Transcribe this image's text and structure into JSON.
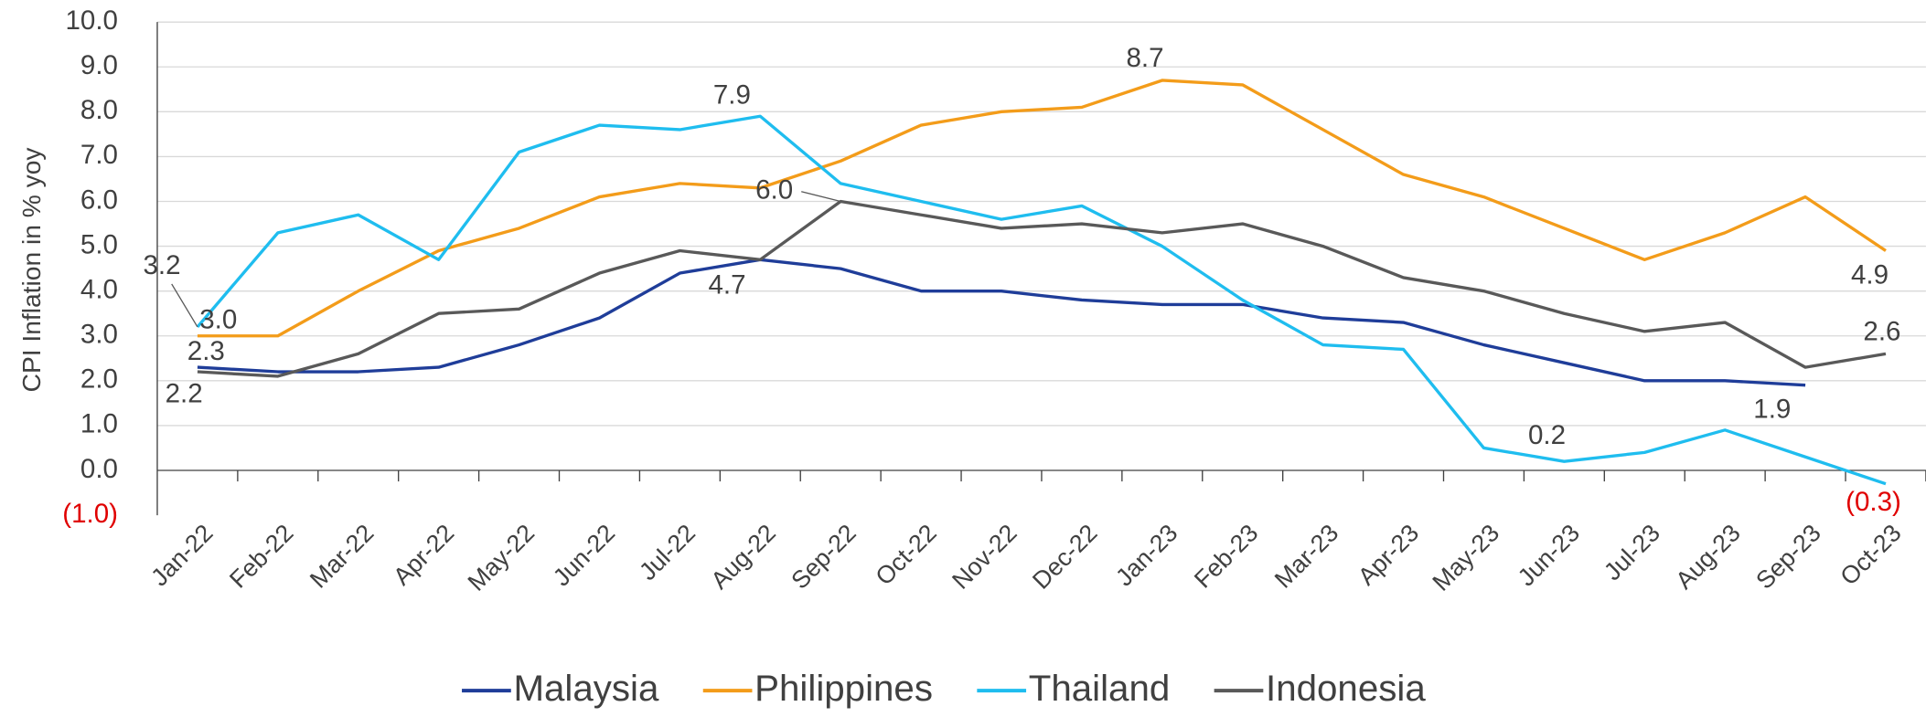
{
  "chart_data": {
    "type": "line",
    "y_label": "CPI Inflation in % yoy",
    "categories": [
      "Jan-22",
      "Feb-22",
      "Mar-22",
      "Apr-22",
      "May-22",
      "Jun-22",
      "Jul-22",
      "Aug-22",
      "Sep-22",
      "Oct-22",
      "Nov-22",
      "Dec-22",
      "Jan-23",
      "Feb-23",
      "Mar-23",
      "Apr-23",
      "May-23",
      "Jun-23",
      "Jul-23",
      "Aug-23",
      "Sep-23",
      "Oct-23"
    ],
    "series": [
      {
        "name": "Malaysia",
        "color": "#1f3d99",
        "values": [
          2.3,
          2.2,
          2.2,
          2.3,
          2.8,
          3.4,
          4.4,
          4.7,
          4.5,
          4.0,
          4.0,
          3.8,
          3.7,
          3.7,
          3.4,
          3.3,
          2.8,
          2.4,
          2.0,
          2.0,
          1.9,
          null
        ],
        "value_labels": [
          "2.3",
          null,
          null,
          null,
          null,
          null,
          null,
          null,
          null,
          null,
          null,
          null,
          null,
          null,
          null,
          null,
          null,
          null,
          null,
          null,
          "1.9",
          null
        ]
      },
      {
        "name": "Philippines",
        "color": "#f39c1a",
        "values": [
          3.0,
          3.0,
          4.0,
          4.9,
          5.4,
          6.1,
          6.4,
          6.3,
          6.9,
          7.7,
          8.0,
          8.1,
          8.7,
          8.6,
          7.6,
          6.6,
          6.1,
          5.4,
          4.7,
          5.3,
          6.1,
          4.9
        ],
        "value_labels": [
          "3.0",
          null,
          null,
          null,
          null,
          null,
          null,
          null,
          null,
          null,
          null,
          null,
          "8.7",
          null,
          null,
          null,
          null,
          null,
          null,
          null,
          null,
          "4.9"
        ]
      },
      {
        "name": "Thailand",
        "color": "#1fbdef",
        "values": [
          3.2,
          5.3,
          5.7,
          4.7,
          7.1,
          7.7,
          7.6,
          7.9,
          6.4,
          6.0,
          5.6,
          5.9,
          5.0,
          3.8,
          2.8,
          2.7,
          0.5,
          0.2,
          0.4,
          0.9,
          0.3,
          -0.3
        ],
        "value_labels": [
          "3.2",
          null,
          null,
          null,
          null,
          null,
          null,
          "7.9",
          null,
          null,
          null,
          null,
          null,
          null,
          null,
          null,
          null,
          "0.2",
          null,
          null,
          null,
          "(0.3)"
        ]
      },
      {
        "name": "Indonesia",
        "color": "#595959",
        "values": [
          2.2,
          2.1,
          2.6,
          3.5,
          3.6,
          4.4,
          4.9,
          4.7,
          6.0,
          5.7,
          5.4,
          5.5,
          5.3,
          5.5,
          5.0,
          4.3,
          4.0,
          3.5,
          3.1,
          3.3,
          2.3,
          2.6
        ],
        "value_labels": [
          "2.2",
          null,
          null,
          null,
          null,
          null,
          null,
          "4.7",
          "6.0",
          null,
          null,
          null,
          null,
          null,
          null,
          null,
          null,
          null,
          null,
          null,
          null,
          "2.6"
        ]
      }
    ],
    "ylim": [
      -1,
      10
    ],
    "yticks": [
      {
        "value": -1,
        "label": "(1.0)"
      },
      {
        "value": 0,
        "label": "0.0"
      },
      {
        "value": 1,
        "label": "1.0"
      },
      {
        "value": 2,
        "label": "2.0"
      },
      {
        "value": 3,
        "label": "3.0"
      },
      {
        "value": 4,
        "label": "4.0"
      },
      {
        "value": 5,
        "label": "5.0"
      },
      {
        "value": 6,
        "label": "6.0"
      },
      {
        "value": 7,
        "label": "7.0"
      },
      {
        "value": 8,
        "label": "8.0"
      },
      {
        "value": 9,
        "label": "9.0"
      },
      {
        "value": 10,
        "label": "10.0"
      }
    ],
    "grid": true,
    "negative_color": "#e00000",
    "legend": "bottom"
  }
}
